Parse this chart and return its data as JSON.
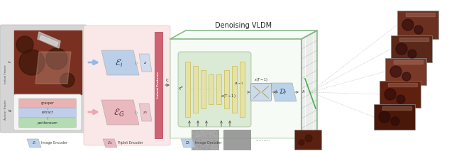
{
  "bg_color": "#ffffff",
  "left_panel_bg": "#d8d8d8",
  "encoder_panel_bg": "#fae8e8",
  "denoising_box_bg": "#e8f5e8",
  "denoising_box_border": "#88bb88",
  "latent_bar_color": "#cc6677",
  "encoder_i_color": "#b0cce8",
  "encoder_g_color": "#e8b0b8",
  "decoder_color": "#b0cce8",
  "unet_col_color": "#e8e0a0",
  "unet_envelope_color": "#c8e0c0",
  "denoising_title": "Denoising VLDM",
  "action_labels": [
    "grasper",
    "retract",
    "peritoneum"
  ],
  "action_colors": [
    "#e8a8a8",
    "#b8c8e8",
    "#a8d8a8"
  ],
  "dots_text": ".........",
  "sidebar_fi": "f_i",
  "sidebar_g": "g",
  "sidebar_frame": "Initial Frame",
  "sidebar_triplet": "Action Triplet"
}
